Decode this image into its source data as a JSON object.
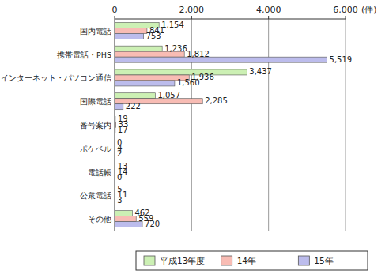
{
  "chart_data": {
    "type": "bar",
    "orientation": "horizontal",
    "xlabel": "(件)",
    "categories": [
      "国内電話",
      "携帯電話・PHS",
      "インターネット・パソコン通信",
      "国際電話",
      "番号案内",
      "ポケベル",
      "電話帳",
      "公衆電話",
      "その他"
    ],
    "series": [
      {
        "name": "平成13年度",
        "color": "#ccf0b4",
        "values": [
          1154,
          1236,
          3437,
          1057,
          19,
          0,
          13,
          5,
          462
        ],
        "value_labels": [
          "1,154",
          "1,236",
          "3,437",
          "1,057",
          "19",
          "0",
          "13",
          "5",
          "462"
        ]
      },
      {
        "name": "14年",
        "color": "#f8bcb4",
        "values": [
          841,
          1812,
          1936,
          2285,
          33,
          4,
          14,
          11,
          559
        ],
        "value_labels": [
          "841",
          "1,812",
          "1,936",
          "2,285",
          "33",
          "4",
          "14",
          "11",
          "559"
        ]
      },
      {
        "name": "15年",
        "color": "#bcbcec",
        "values": [
          753,
          5519,
          1560,
          222,
          17,
          2,
          0,
          3,
          720
        ],
        "value_labels": [
          "753",
          "5,519",
          "1,560",
          "222",
          "17",
          "2",
          "0",
          "3",
          "720"
        ]
      }
    ],
    "xlim": [
      0,
      6000
    ],
    "xticks": [
      0,
      {
        "value": 2000,
        "label": "2,000"
      },
      {
        "value": 4000,
        "label": "4,000"
      },
      {
        "value": 6000,
        "label": "6,000"
      }
    ],
    "grid": true,
    "data_labels": true,
    "legend": "bottom"
  }
}
